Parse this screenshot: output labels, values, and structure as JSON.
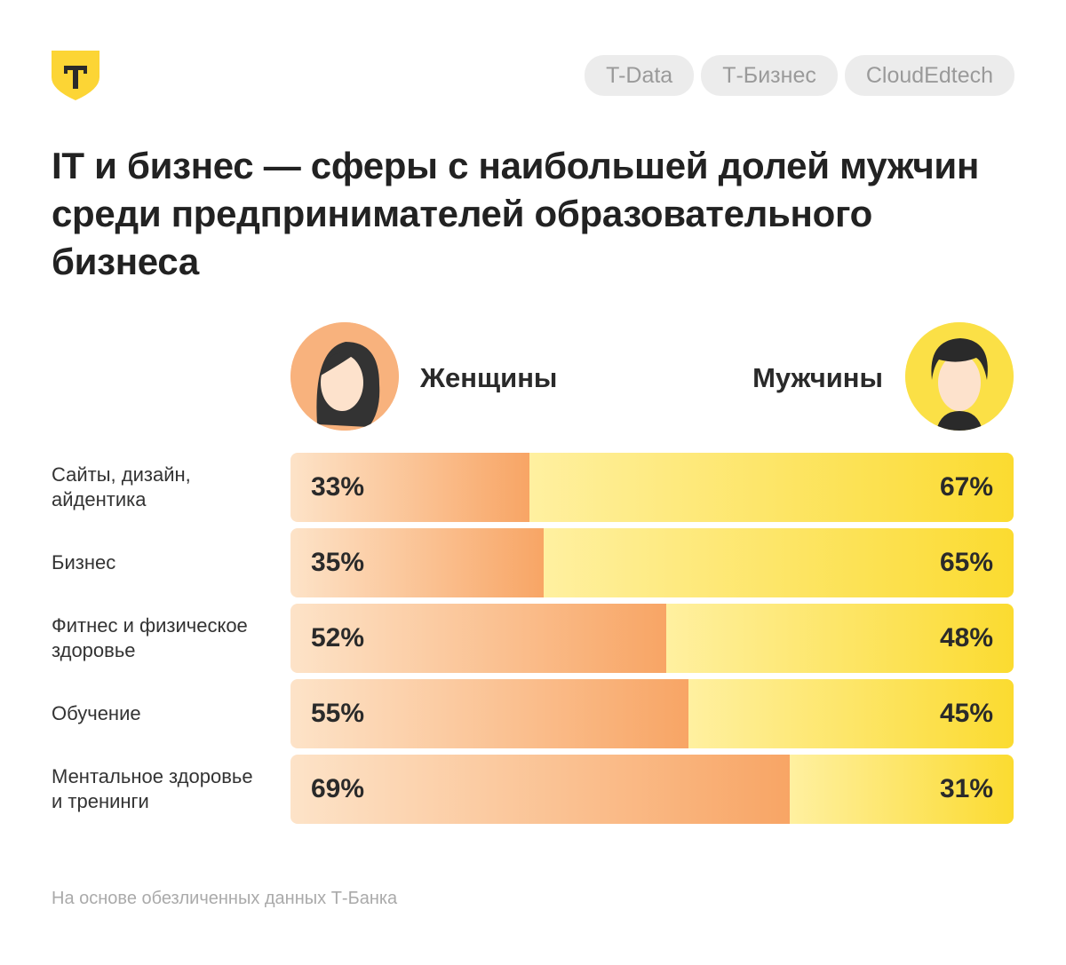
{
  "header": {
    "logo_letter": "Т",
    "tags": [
      "T-Data",
      "Т-Бизнес",
      "CloudEdtech"
    ]
  },
  "title": "IT и бизнес — сферы с наибольшей долей мужчин среди предпринимателей образовательного бизнеса",
  "footer": "На основе обезличенных данных Т-Банка",
  "colors": {
    "women": "#f8a565",
    "men": "#fbdb30",
    "logo": "#fcd535"
  },
  "chart_data": {
    "type": "bar",
    "stacked": true,
    "orientation": "horizontal",
    "categories": [
      "Сайты, дизайн, айдентика",
      "Бизнес",
      "Фитнес и физическое здоровье",
      "Обучение",
      "Ментальное здоровье и тренинги"
    ],
    "series": [
      {
        "name": "Женщины",
        "values": [
          33,
          35,
          52,
          55,
          69
        ],
        "labels": [
          "33%",
          "35%",
          "52%",
          "55%",
          "69%"
        ]
      },
      {
        "name": "Мужчины",
        "values": [
          67,
          65,
          48,
          45,
          31
        ],
        "labels": [
          "67%",
          "65%",
          "48%",
          "45%",
          "31%"
        ]
      }
    ],
    "xlim": [
      0,
      100
    ],
    "legend": "top"
  }
}
